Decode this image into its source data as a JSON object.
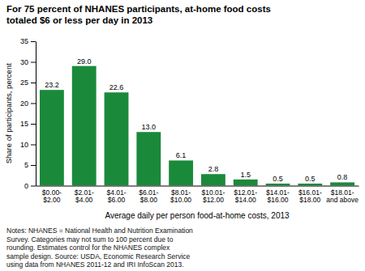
{
  "chart_data": {
    "type": "bar",
    "title": "For 75 percent of NHANES participants, at-home food costs totaled $6 or less per day in 2013",
    "ylabel": "Share of participants, percent",
    "xlabel": "Average daily per person food-at-home costs, 2013",
    "categories": [
      "$0.00-\n$2.00",
      "$2.01-\n$4.00",
      "$4.01-\n$6.00",
      "$6.01-\n$8.00",
      "$8.01-\n$10.00",
      "$10.01-\n$12.00",
      "$12.01-\n$14.00",
      "$14.01-\n$16.00",
      "$16.01-\n$18.00",
      "$18.01-\nand above"
    ],
    "values": [
      23.2,
      29.0,
      22.6,
      13.0,
      6.1,
      2.8,
      1.5,
      0.5,
      0.5,
      0.8
    ],
    "value_labels": [
      "23.2",
      "29.0",
      "22.6",
      "13.0",
      "6.1",
      "2.8",
      "1.5",
      "0.5",
      "0.5",
      "0.8"
    ],
    "data_labels": true,
    "color": "#1a8a3a",
    "ylim": [
      0,
      35
    ],
    "yticks": [
      0,
      5,
      10,
      15,
      20,
      25,
      30,
      35
    ],
    "grid": false,
    "notes": "Notes: NHANES = National Health and Nutrition Examination Survey. Categories may not sum to\n100 percent due to rounding. Estimates control for the NHANES complex sample design.\nSource: USDA, Economic Research Service using data from NHANES 2011-12 and IRI\nInfoScan 2013."
  }
}
